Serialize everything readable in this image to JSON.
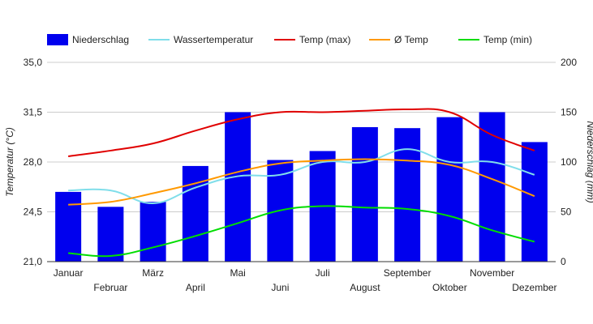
{
  "chart_data": {
    "type": "bar+line",
    "categories": [
      "Januar",
      "Februar",
      "März",
      "April",
      "Mai",
      "Juni",
      "Juli",
      "August",
      "September",
      "Oktober",
      "November",
      "Dezember"
    ],
    "left_axis": {
      "label": "Temperatur (°C)",
      "ylim": [
        21.0,
        35.0
      ],
      "ticks": [
        21.0,
        24.5,
        28.0,
        31.5,
        35.0
      ],
      "tick_labels": [
        "21,0",
        "24,5",
        "28,0",
        "31,5",
        "35,0"
      ]
    },
    "right_axis": {
      "label": "Niederschlag (mm)",
      "ylim": [
        0,
        200
      ],
      "ticks": [
        0,
        50,
        100,
        150,
        200
      ],
      "tick_labels": [
        "0",
        "50",
        "100",
        "150",
        "200"
      ]
    },
    "bars": {
      "name": "Niederschlag",
      "color": "#0000ee",
      "values": [
        70,
        55,
        60,
        96,
        150,
        102,
        111,
        135,
        134,
        145,
        150,
        120
      ]
    },
    "series": [
      {
        "name": "Wassertemperatur",
        "color": "#80deea",
        "values": [
          26.0,
          26.0,
          25.1,
          26.2,
          27.0,
          27.1,
          28.0,
          28.0,
          28.9,
          28.0,
          28.0,
          27.1
        ]
      },
      {
        "name": "Temp (max)",
        "color": "#e00000",
        "values": [
          28.4,
          28.8,
          29.3,
          30.2,
          31.0,
          31.5,
          31.5,
          31.6,
          31.7,
          31.5,
          29.9,
          28.8
        ]
      },
      {
        "name": "Ø Temp",
        "color": "#ff9900",
        "values": [
          25.0,
          25.2,
          25.8,
          26.5,
          27.3,
          27.9,
          28.1,
          28.2,
          28.1,
          27.8,
          26.8,
          25.6
        ]
      },
      {
        "name": "Temp (min)",
        "color": "#00dd00",
        "values": [
          21.6,
          21.4,
          22.0,
          22.8,
          23.7,
          24.6,
          24.9,
          24.8,
          24.7,
          24.2,
          23.2,
          22.4
        ]
      }
    ],
    "legend": {
      "position": "top-left",
      "items": [
        {
          "name": "Niederschlag",
          "kind": "bar",
          "color": "#0000ee"
        },
        {
          "name": "Wassertemperatur",
          "kind": "line",
          "color": "#80deea"
        },
        {
          "name": "Temp (max)",
          "kind": "line",
          "color": "#e00000"
        },
        {
          "name": "Ø Temp",
          "kind": "line",
          "color": "#ff9900"
        },
        {
          "name": "Temp (min)",
          "kind": "line",
          "color": "#00dd00"
        }
      ]
    },
    "grid": true
  }
}
